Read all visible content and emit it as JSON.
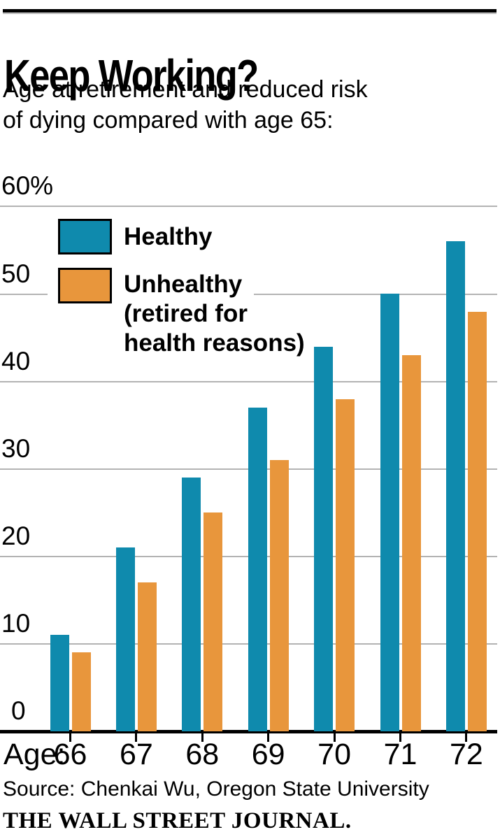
{
  "header": {
    "title": "Keep Working?",
    "subtitle_lines": [
      "Age at retirement and reduced risk",
      "of dying compared with age 65:"
    ]
  },
  "legend": {
    "items": [
      {
        "label": "Healthy",
        "lines": [
          "Healthy"
        ]
      },
      {
        "label": "Unhealthy (retired for health reasons)",
        "lines": [
          "Unhealthy",
          "(retired for",
          "health reasons)"
        ]
      }
    ]
  },
  "chart_data": {
    "type": "bar",
    "title": "Keep Working?",
    "subtitle": "Age at retirement and reduced risk of dying compared with age 65:",
    "x_prefix_label": "Age:",
    "categories": [
      "66",
      "67",
      "68",
      "69",
      "70",
      "71",
      "72"
    ],
    "series": [
      {
        "name": "Healthy",
        "color": "#0f8aad",
        "values": [
          11,
          21,
          29,
          37,
          44,
          50,
          56
        ]
      },
      {
        "name": "Unhealthy (retired for health reasons)",
        "color": "#e8963c",
        "values": [
          9,
          17,
          25,
          31,
          38,
          43,
          48
        ]
      }
    ],
    "unit": "percent",
    "ylim": [
      0,
      60
    ],
    "yticks": [
      {
        "value": 60,
        "label": "60%"
      },
      {
        "value": 50,
        "label": "50"
      },
      {
        "value": 40,
        "label": "40"
      },
      {
        "value": 30,
        "label": "30"
      },
      {
        "value": 20,
        "label": "20"
      },
      {
        "value": 10,
        "label": "10"
      },
      {
        "value": 0,
        "label": "0"
      }
    ],
    "grid": "horizontal",
    "legend_position": "top-left-inside"
  },
  "footer": {
    "source": "Source: Chenkai Wu, Oregon State University",
    "credit": "THE WALL STREET JOURNAL."
  },
  "colors": {
    "healthy": "#0f8aad",
    "unhealthy": "#e8963c",
    "gridline": "#b3b3b3",
    "axis": "#000000",
    "text": "#000000"
  }
}
